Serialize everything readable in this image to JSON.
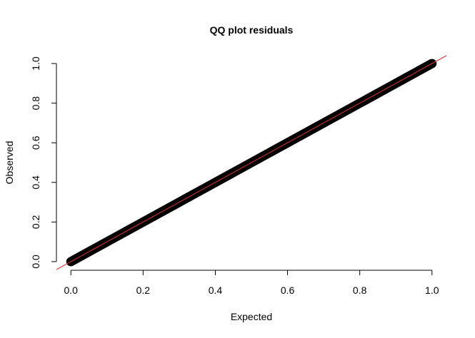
{
  "chart_data": {
    "type": "scatter",
    "title": "QQ plot residuals",
    "xlabel": "Expected",
    "ylabel": "Observed",
    "xlim": [
      -0.04,
      1.04
    ],
    "ylim": [
      -0.04,
      1.04
    ],
    "x_ticks": [
      "0.0",
      "0.2",
      "0.4",
      "0.6",
      "0.8",
      "1.0"
    ],
    "y_ticks": [
      "0.0",
      "0.2",
      "0.4",
      "0.6",
      "0.8",
      "1.0"
    ],
    "x_tick_values": [
      0,
      0.2,
      0.4,
      0.6,
      0.8,
      1.0
    ],
    "y_tick_values": [
      0,
      0.2,
      0.4,
      0.6,
      0.8,
      1.0
    ],
    "series": [
      {
        "points": {
          "x_start": 0.0,
          "x_end": 1.0,
          "y_start": 0.0,
          "y_end": 1.0
        },
        "color": "#000000"
      }
    ],
    "reference_line": {
      "slope": 1,
      "intercept": 0,
      "color": "#e03030"
    },
    "grid": false,
    "frame": "left-bottom axes only"
  }
}
